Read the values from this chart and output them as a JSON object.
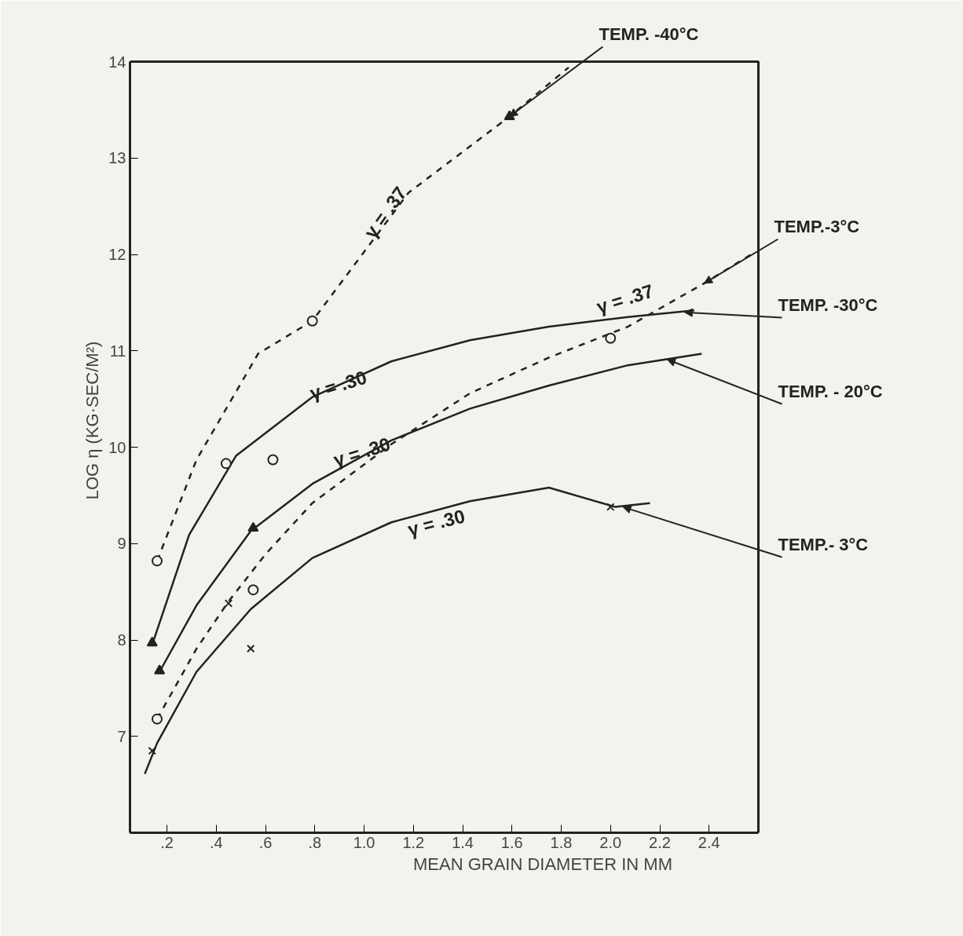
{
  "chart_data": {
    "type": "line",
    "xlabel": "MEAN GRAIN DIAMETER IN MM",
    "ylabel": "LOG η (KG·SEC/M²)",
    "xlim": [
      0.05,
      2.6
    ],
    "ylim": [
      6,
      14
    ],
    "xticks": [
      {
        "value": 0.2,
        "label": ".2"
      },
      {
        "value": 0.4,
        "label": ".4"
      },
      {
        "value": 0.6,
        "label": ".6"
      },
      {
        "value": 0.8,
        "label": ".8"
      },
      {
        "value": 1.0,
        "label": "1.0"
      },
      {
        "value": 1.2,
        "label": "1.2"
      },
      {
        "value": 1.4,
        "label": "1.4"
      },
      {
        "value": 1.6,
        "label": "1.6"
      },
      {
        "value": 1.8,
        "label": "1.8"
      },
      {
        "value": 2.0,
        "label": "2.0"
      },
      {
        "value": 2.2,
        "label": "2.2"
      },
      {
        "value": 2.4,
        "label": "2.4"
      }
    ],
    "yticks": [
      7,
      8,
      9,
      10,
      11,
      12,
      13,
      14
    ],
    "grid": false,
    "series": [
      {
        "line_style": "dashed",
        "color": "#222222",
        "x": [
          0.16,
          0.32,
          0.57,
          0.79,
          1.18,
          1.59,
          1.83
        ],
        "values": [
          8.82,
          9.87,
          10.97,
          11.31,
          12.64,
          13.43,
          13.94
        ]
      },
      {
        "line_style": "solid",
        "color": "#222222",
        "x": [
          0.14,
          0.29,
          0.48,
          0.79,
          1.11,
          1.43,
          1.75,
          2.07,
          2.34
        ],
        "values": [
          7.95,
          9.09,
          9.91,
          10.52,
          10.89,
          11.11,
          11.25,
          11.35,
          11.42
        ]
      },
      {
        "line_style": "solid",
        "color": "#222222",
        "x": [
          0.17,
          0.32,
          0.54,
          0.79,
          1.11,
          1.43,
          1.75,
          2.07,
          2.37
        ],
        "values": [
          7.67,
          8.36,
          9.13,
          9.62,
          10.07,
          10.4,
          10.64,
          10.85,
          10.97
        ]
      },
      {
        "line_style": "dashed",
        "color": "#222222",
        "x": [
          0.16,
          0.32,
          0.45,
          0.6,
          0.79,
          1.11,
          1.43,
          1.75,
          2.07,
          2.38,
          2.59
        ],
        "values": [
          7.18,
          7.91,
          8.4,
          8.89,
          9.42,
          10.03,
          10.56,
          10.93,
          11.25,
          11.7,
          12.03
        ]
      },
      {
        "line_style": "solid",
        "color": "#222222",
        "x": [
          0.11,
          0.16,
          0.32,
          0.54,
          0.79,
          1.11,
          1.43,
          1.75,
          2.02,
          2.16
        ],
        "values": [
          6.61,
          6.93,
          7.67,
          8.32,
          8.85,
          9.22,
          9.44,
          9.58,
          9.38,
          9.42
        ]
      },
      {
        "type": "scatter",
        "marker": "cross",
        "color": "#222222",
        "x": [
          0.14,
          0.45,
          0.54,
          2.0
        ],
        "values": [
          6.85,
          8.38,
          7.91,
          9.38
        ]
      },
      {
        "type": "scatter",
        "marker": "circle",
        "color": "#222222",
        "x": [
          0.16,
          0.55,
          0.16,
          0.79,
          0.44,
          0.63,
          2.0
        ],
        "values": [
          7.18,
          8.52,
          8.82,
          11.31,
          9.83,
          9.87,
          11.13
        ]
      },
      {
        "type": "scatter",
        "marker": "triangle",
        "color": "#222222",
        "x": [
          0.14,
          0.17,
          0.55,
          1.59
        ],
        "values": [
          7.97,
          7.68,
          9.16,
          13.43
        ]
      }
    ],
    "annotations": [
      {
        "text": "TEMP. -40°C",
        "x": 1.59,
        "y": 13.43
      },
      {
        "text": "TEMP.-3°C",
        "x": 2.38,
        "y": 11.7
      },
      {
        "text": "TEMP. -30°C",
        "x": 2.3,
        "y": 11.4
      },
      {
        "text": "TEMP. - 20°C",
        "x": 2.23,
        "y": 10.91
      },
      {
        "text": "TEMP.- 3°C",
        "x": 2.05,
        "y": 9.38
      },
      "γ = .37",
      "γ = .37",
      "γ = .30",
      "γ = .30",
      "γ = .30"
    ]
  }
}
